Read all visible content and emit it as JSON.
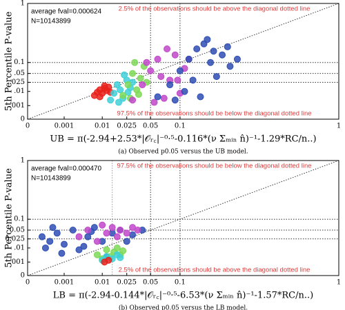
{
  "chart_data": [
    {
      "type": "scatter",
      "ylabel": "5th Percentile P-value",
      "xlabel": "UB = π(-2.94+2.53*|𝒪ᵣ꜀|⁻⁰·⁵-0.116*(ν Σₘᵢₙ n̂)⁻¹-1.29*RC/n..)",
      "caption": "(a) Observed p0.05 versus the UB model.",
      "annotations": [
        "average fval=0.000624",
        "N=10143899",
        "2.5% of the observations should be above the diagonal dotted line",
        "97.5% of the observations should be below the diagonal dotted line"
      ],
      "xscale": "pow",
      "xscale_exponent": 0.31,
      "xlim": [
        0,
        1
      ],
      "ylim": [
        0,
        1
      ],
      "xticks": [
        0,
        0.001,
        0.01,
        0.025,
        0.05,
        0.1,
        1
      ],
      "yticks": [
        0,
        {
          "value": 0.001,
          "label": ".001"
        },
        {
          "value": 0.01,
          "label": ".01"
        },
        {
          "value": 0.025,
          "label": ".025"
        },
        {
          "value": 0.05,
          "label": ".05"
        },
        0.1,
        1
      ],
      "hlines": [
        0.025,
        0.05,
        0.1
      ],
      "vlines": [
        0.05,
        0.1
      ],
      "diagonal": true,
      "series": [
        {
          "color": "#e8221c",
          "x": [
            0.007,
            0.008,
            0.009,
            0.01,
            0.011,
            0.012,
            0.013,
            0.014,
            0.009,
            0.011
          ],
          "y": [
            0.006,
            0.009,
            0.012,
            0.008,
            0.014,
            0.011,
            0.016,
            0.009,
            0.005,
            0.018
          ]
        },
        {
          "color": "#3fd0d8",
          "x": [
            0.014,
            0.016,
            0.018,
            0.02,
            0.022,
            0.025,
            0.028,
            0.019,
            0.023,
            0.026,
            0.03
          ],
          "y": [
            0.003,
            0.008,
            0.02,
            0.012,
            0.004,
            0.03,
            0.015,
            0.002,
            0.045,
            0.009,
            0.025
          ]
        },
        {
          "color": "#7ed957",
          "x": [
            0.022,
            0.026,
            0.03,
            0.034,
            0.038,
            0.042,
            0.028,
            0.036,
            0.045,
            0.032
          ],
          "y": [
            0.006,
            0.02,
            0.05,
            0.012,
            0.035,
            0.08,
            0.004,
            0.007,
            0.025,
            0.1
          ]
        },
        {
          "color": "#c148c9",
          "x": [
            0.03,
            0.04,
            0.05,
            0.06,
            0.07,
            0.08,
            0.09,
            0.1,
            0.11,
            0.045,
            0.055,
            0.075,
            0.095,
            0.065,
            0.12
          ],
          "y": [
            0.003,
            0.02,
            0.06,
            0.12,
            0.004,
            0.03,
            0.15,
            0.008,
            0.07,
            0.1,
            0.002,
            0.2,
            0.03,
            0.04,
            0.12
          ]
        },
        {
          "color": "#2f4eb5",
          "x": [
            0.06,
            0.08,
            0.1,
            0.12,
            0.14,
            0.16,
            0.18,
            0.2,
            0.22,
            0.25,
            0.09,
            0.11,
            0.13,
            0.15,
            0.17,
            0.19,
            0.24,
            0.28
          ],
          "y": [
            0.005,
            0.02,
            0.06,
            0.12,
            0.2,
            0.25,
            0.1,
            0.04,
            0.15,
            0.08,
            0.003,
            0.01,
            0.03,
            0.005,
            0.3,
            0.18,
            0.22,
            0.12
          ]
        }
      ]
    },
    {
      "type": "scatter",
      "ylabel": "5th Percentile P-value",
      "xlabel": "LB = π(-2.94-0.144*|𝒪ᵣ꜀|⁻⁰·⁵-6.53*(ν Σₘᵢₙ n̂)⁻¹-1.57*RC/n..)",
      "caption": "(b) Observed p0.05 versus the LB model.",
      "annotations": [
        "average fval=0.000470",
        "N=10143899",
        "97.5% of the observations should be below the diagonal dotted line",
        "2.5% of the observations should be above the diagonal dotted line"
      ],
      "xscale": "pow",
      "xscale_exponent": 0.31,
      "xlim": [
        0,
        1
      ],
      "ylim": [
        0,
        1
      ],
      "xticks": [
        0,
        0.001,
        0.01,
        0.025,
        0.05,
        0.1,
        1
      ],
      "yticks": [
        0,
        {
          "value": 0.001,
          "label": ".001"
        },
        {
          "value": 0.01,
          "label": ".01"
        },
        0.025,
        0.05,
        0.1,
        1
      ],
      "hlines": [
        0.025,
        0.05,
        0.1
      ],
      "vlines": [
        0.015,
        0.05,
        0.1
      ],
      "diagonal": true,
      "series": [
        {
          "color": "#2f4eb5",
          "x": [
            5e-05,
            0.0002,
            0.0005,
            0.001,
            0.002,
            0.003,
            0.005,
            0.007,
            0.01,
            0.015,
            0.02,
            0.03,
            0.04,
            0.0003,
            0.0008,
            0.004,
            0.012,
            0.025,
            0.0001,
            0.006
          ],
          "y": [
            0.03,
            0.02,
            0.04,
            0.015,
            0.05,
            0.008,
            0.03,
            0.06,
            0.02,
            0.04,
            0.05,
            0.035,
            0.05,
            0.06,
            0.005,
            0.012,
            0.003,
            0.02,
            0.01,
            0.045
          ]
        },
        {
          "color": "#c148c9",
          "x": [
            0.003,
            0.005,
            0.008,
            0.01,
            0.012,
            0.015,
            0.018,
            0.02,
            0.025,
            0.03,
            0.035
          ],
          "y": [
            0.03,
            0.05,
            0.02,
            0.07,
            0.04,
            0.06,
            0.03,
            0.05,
            0.04,
            0.06,
            0.05
          ]
        },
        {
          "color": "#7ed957",
          "x": [
            0.008,
            0.01,
            0.012,
            0.014,
            0.016,
            0.018,
            0.02,
            0.022
          ],
          "y": [
            0.004,
            0.002,
            0.008,
            0.003,
            0.006,
            0.01,
            0.004,
            0.007
          ]
        },
        {
          "color": "#3fd0d8",
          "x": [
            0.01,
            0.012,
            0.015,
            0.018,
            0.02
          ],
          "y": [
            0.0015,
            0.003,
            0.002,
            0.004,
            0.0025
          ]
        },
        {
          "color": "#e8221c",
          "x": [
            0.011,
            0.013
          ],
          "y": [
            0.001,
            0.0015
          ]
        }
      ]
    }
  ]
}
